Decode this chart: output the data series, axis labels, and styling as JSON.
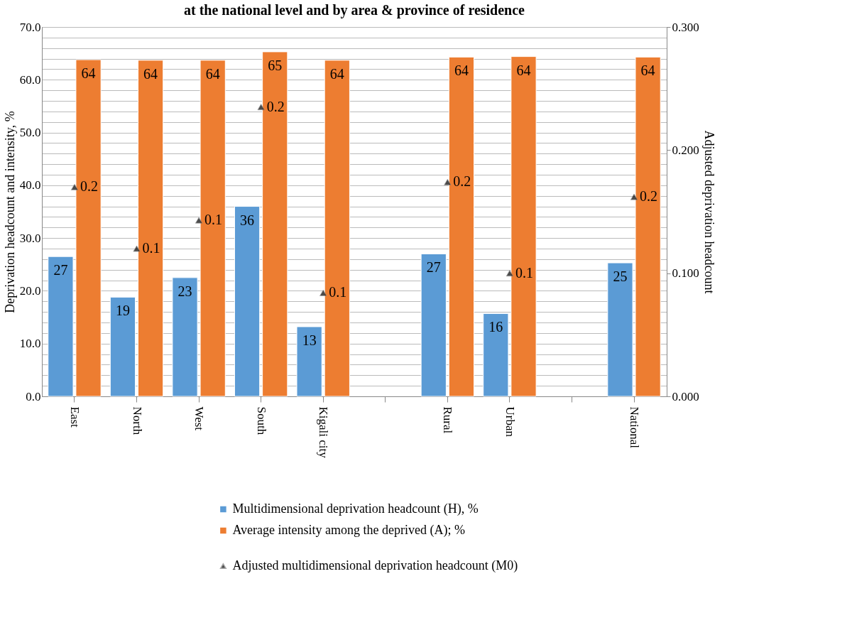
{
  "chart_data": {
    "type": "bar",
    "title": "at the national level and by area & province of residence",
    "ylabel": "Deprivation headcount and intensity, %",
    "y2label": "Adjusted deprivation headcount",
    "categories": [
      "East",
      "North",
      "West",
      "South",
      "Kigali city",
      null,
      "Rural",
      "Urban",
      null,
      "National"
    ],
    "series": [
      {
        "name": "Multidimensional deprivation headcount (H), %",
        "color": "#5b9bd5",
        "values": [
          26.5,
          18.8,
          22.5,
          36.0,
          13.2,
          null,
          27.0,
          15.7,
          null,
          25.3
        ],
        "value_labels": [
          "27",
          "19",
          "23",
          "36",
          "13",
          null,
          "27",
          "16",
          null,
          "25"
        ]
      },
      {
        "name": "Average intensity among the deprived (A); %",
        "color": "#ed7d31",
        "values": [
          63.8,
          63.7,
          63.7,
          65.3,
          63.7,
          null,
          64.3,
          64.4,
          null,
          64.3
        ],
        "value_labels": [
          "64",
          "64",
          "64",
          "65",
          "64",
          null,
          "64",
          "64",
          null,
          "64"
        ]
      },
      {
        "name": "Adjusted multidimensional deprivation headcount (M0)",
        "type": "scatter",
        "axis": "y2",
        "marker": "triangle",
        "color": "#000000",
        "values": [
          0.17,
          0.12,
          0.143,
          0.235,
          0.084,
          null,
          0.174,
          0.1,
          null,
          0.162
        ],
        "value_labels": [
          "0.2",
          "0.1",
          "0.1",
          "0.2",
          "0.1",
          null,
          "0.2",
          "0.1",
          null,
          "0.2"
        ]
      }
    ],
    "ylim": [
      0,
      70
    ],
    "yticks": [
      {
        "value": 0,
        "label": "0.0"
      },
      {
        "value": 2,
        "label": null
      },
      {
        "value": 4,
        "label": null
      },
      {
        "value": 6,
        "label": null
      },
      {
        "value": 8,
        "label": null
      },
      {
        "value": 10,
        "label": "10.0"
      },
      {
        "value": 12,
        "label": null
      },
      {
        "value": 14,
        "label": null
      },
      {
        "value": 16,
        "label": null
      },
      {
        "value": 18,
        "label": null
      },
      {
        "value": 20,
        "label": "20.0"
      },
      {
        "value": 22,
        "label": null
      },
      {
        "value": 24,
        "label": null
      },
      {
        "value": 26,
        "label": null
      },
      {
        "value": 28,
        "label": null
      },
      {
        "value": 30,
        "label": "30.0"
      },
      {
        "value": 32,
        "label": null
      },
      {
        "value": 34,
        "label": null
      },
      {
        "value": 36,
        "label": null
      },
      {
        "value": 38,
        "label": null
      },
      {
        "value": 40,
        "label": "40.0"
      },
      {
        "value": 42,
        "label": null
      },
      {
        "value": 44,
        "label": null
      },
      {
        "value": 46,
        "label": null
      },
      {
        "value": 48,
        "label": null
      },
      {
        "value": 50,
        "label": "50.0"
      },
      {
        "value": 52,
        "label": null
      },
      {
        "value": 54,
        "label": null
      },
      {
        "value": 56,
        "label": null
      },
      {
        "value": 58,
        "label": null
      },
      {
        "value": 60,
        "label": "60.0"
      },
      {
        "value": 62,
        "label": null
      },
      {
        "value": 64,
        "label": null
      },
      {
        "value": 66,
        "label": null
      },
      {
        "value": 68,
        "label": null
      },
      {
        "value": 70,
        "label": "70.0"
      }
    ],
    "y2lim": [
      0,
      0.3
    ],
    "y2ticks": [
      {
        "value": 0,
        "label": "0.000"
      },
      {
        "value": 0.1,
        "label": "0.100"
      },
      {
        "value": 0.2,
        "label": "0.200"
      },
      {
        "value": 0.3,
        "label": "0.300"
      }
    ],
    "grid": "y",
    "legend": "bottom"
  }
}
